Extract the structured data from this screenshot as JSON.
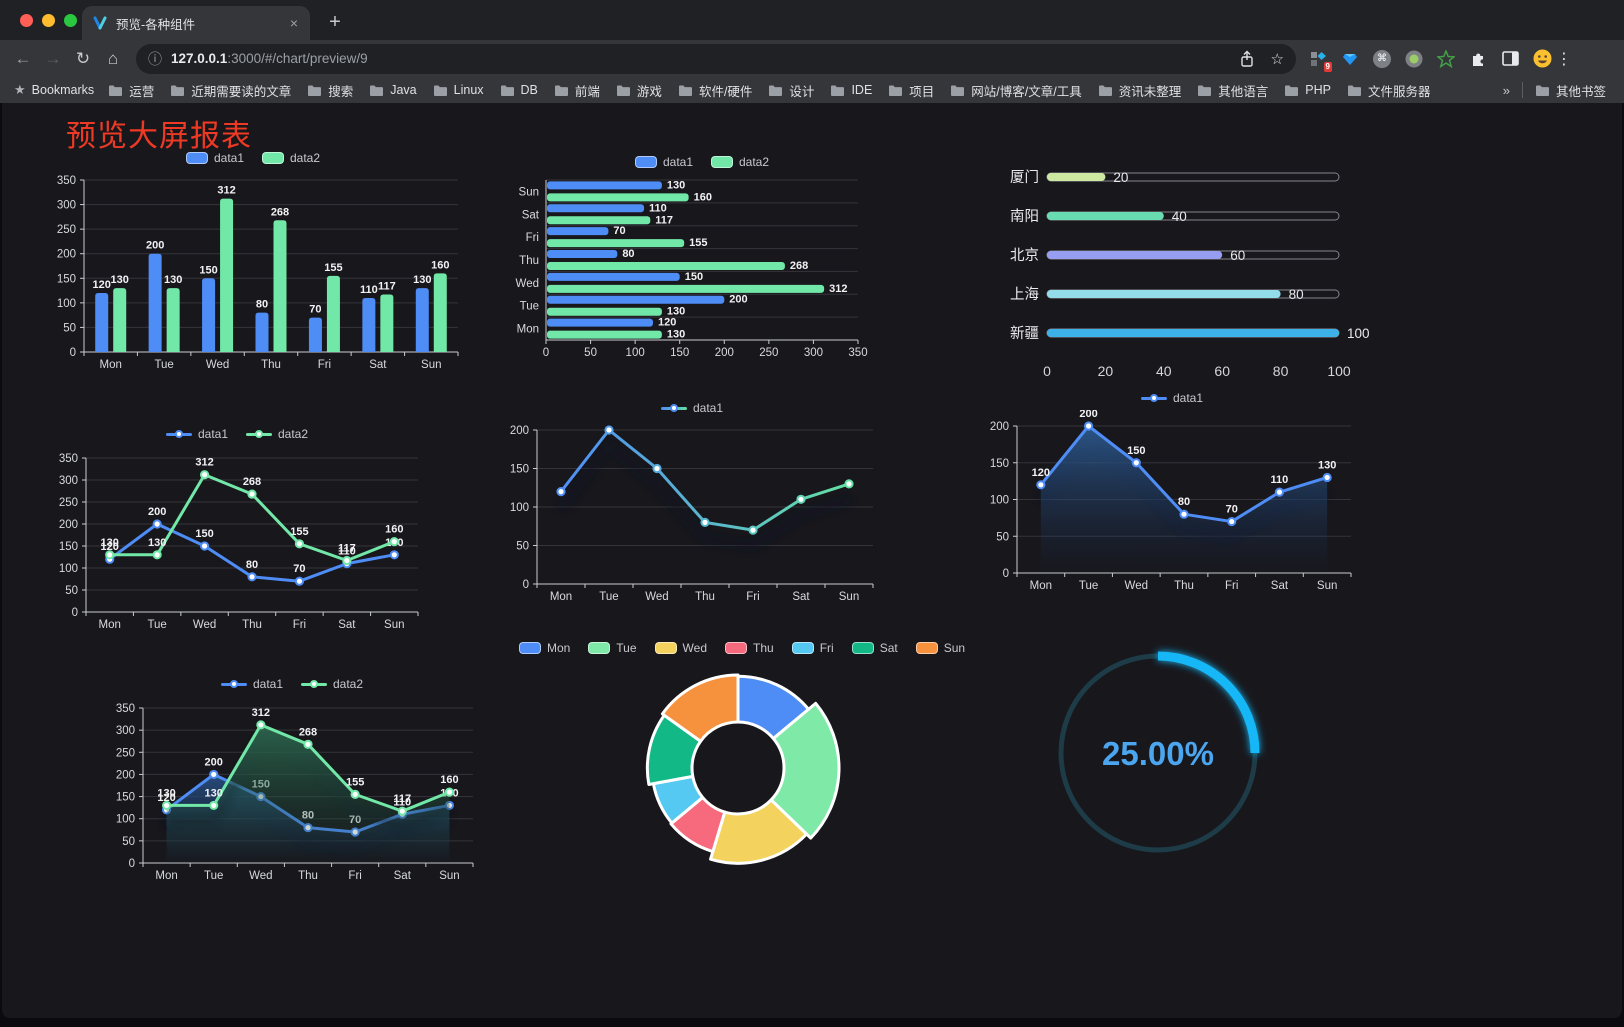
{
  "browser": {
    "tab_title": "预览-各种组件",
    "close_glyph": "×",
    "newtab_glyph": "+",
    "back_glyph": "←",
    "forward_glyph": "→",
    "reload_glyph": "↻",
    "home_glyph": "⌂",
    "info_glyph": "ⓘ",
    "star_glyph": "☆",
    "url_host": "127.0.0.1",
    "url_path": ":3000/#/chart/preview/9",
    "extension_badge": "9",
    "kebab_glyph": "⋮",
    "bookmarks_star": "★",
    "bookmarks_label": "Bookmarks",
    "bookmarks": [
      "运营",
      "近期需要读的文章",
      "搜索",
      "Java",
      "Linux",
      "DB",
      "前端",
      "游戏",
      "软件/硬件",
      "设计",
      "IDE",
      "项目",
      "网站/博客/文章/工具",
      "资讯未整理",
      "其他语言",
      "PHP",
      "文件服务器"
    ],
    "overflow_chevron": "»",
    "other_bookmarks": "其他书签"
  },
  "page": {
    "title": "预览大屏报表",
    "title_color": "#ee3a24"
  },
  "colors": {
    "data1_blue": "#4f8df6",
    "data2_green": "#72e8a8",
    "axis_line": "#c9ccd1",
    "grid_line": "#34343a",
    "tick_text": "#d8dade",
    "value_label": "#f2f2f4",
    "gauge_arc": "#19b7f7",
    "gauge_track": "#1d3c48",
    "gauge_text": "#4ba5ef"
  },
  "chart_data": [
    {
      "id": "bar-grouped",
      "type": "bar",
      "legend": true,
      "categories": [
        "Mon",
        "Tue",
        "Wed",
        "Thu",
        "Fri",
        "Sat",
        "Sun"
      ],
      "series": [
        {
          "name": "data1",
          "color": "#4f8df6",
          "values": [
            120,
            200,
            150,
            80,
            70,
            110,
            130
          ]
        },
        {
          "name": "data2",
          "color": "#72e8a8",
          "values": [
            130,
            130,
            312,
            268,
            155,
            117,
            160
          ]
        }
      ],
      "ylim": [
        0,
        350
      ],
      "yticks": [
        0,
        50,
        100,
        150,
        200,
        250,
        300,
        350
      ],
      "labels": true
    },
    {
      "id": "bar-horizontal",
      "type": "hbar",
      "legend": true,
      "categories": [
        "Mon",
        "Tue",
        "Wed",
        "Thu",
        "Fri",
        "Sat",
        "Sun"
      ],
      "series": [
        {
          "name": "data1",
          "color": "#4f8df6",
          "values": [
            120,
            200,
            150,
            80,
            70,
            110,
            130
          ]
        },
        {
          "name": "data2",
          "color": "#72e8a8",
          "values": [
            130,
            130,
            312,
            268,
            155,
            117,
            160
          ]
        }
      ],
      "xlim": [
        0,
        350
      ],
      "xticks": [
        0,
        50,
        100,
        150,
        200,
        250,
        300,
        350
      ],
      "labels": true
    },
    {
      "id": "progress",
      "type": "progress",
      "max": 100,
      "items": [
        {
          "label": "厦门",
          "value": 20,
          "color": "#cde9a1"
        },
        {
          "label": "南阳",
          "value": 40,
          "color": "#68ddb2"
        },
        {
          "label": "北京",
          "value": 60,
          "color": "#979df1"
        },
        {
          "label": "上海",
          "value": 80,
          "color": "#93dcea"
        },
        {
          "label": "新疆",
          "value": 100,
          "color": "#3db2e8"
        }
      ],
      "xticks": [
        0,
        20,
        40,
        60,
        80,
        100
      ]
    },
    {
      "id": "line-two",
      "type": "line",
      "legend": true,
      "categories": [
        "Mon",
        "Tue",
        "Wed",
        "Thu",
        "Fri",
        "Sat",
        "Sun"
      ],
      "series": [
        {
          "name": "data1",
          "color": "#4f8df6",
          "values": [
            120,
            200,
            150,
            80,
            70,
            110,
            130
          ]
        },
        {
          "name": "data2",
          "color": "#72e8a8",
          "values": [
            130,
            130,
            312,
            268,
            155,
            117,
            160
          ]
        }
      ],
      "ylim": [
        0,
        350
      ],
      "yticks": [
        0,
        50,
        100,
        150,
        200,
        250,
        300,
        350
      ],
      "labels": true
    },
    {
      "id": "line-gradient",
      "type": "line",
      "legend": true,
      "shadow": true,
      "categories": [
        "Mon",
        "Tue",
        "Wed",
        "Thu",
        "Fri",
        "Sat",
        "Sun"
      ],
      "series": [
        {
          "name": "data1",
          "color": "#4f8df6",
          "gradient": [
            "#4f8df6",
            "#63e0a3"
          ],
          "values": [
            120,
            200,
            150,
            80,
            70,
            110,
            130
          ]
        }
      ],
      "ylim": [
        0,
        200
      ],
      "yticks": [
        0,
        50,
        100,
        150,
        200
      ],
      "labels": false
    },
    {
      "id": "area-blue",
      "type": "line",
      "legend": true,
      "shadow": true,
      "categories": [
        "Mon",
        "Tue",
        "Wed",
        "Thu",
        "Fri",
        "Sat",
        "Sun"
      ],
      "series": [
        {
          "name": "data1",
          "color": "#4f8df6",
          "area": [
            "rgba(47,96,153,0.85)",
            "rgba(25,50,90,0.02)"
          ],
          "values": [
            120,
            200,
            150,
            80,
            70,
            110,
            130
          ]
        }
      ],
      "ylim": [
        0,
        200
      ],
      "yticks": [
        0,
        50,
        100,
        150,
        200
      ],
      "labels": true
    },
    {
      "id": "area-two",
      "type": "line",
      "legend": true,
      "shadow": true,
      "categories": [
        "Mon",
        "Tue",
        "Wed",
        "Thu",
        "Fri",
        "Sat",
        "Sun"
      ],
      "series": [
        {
          "name": "data1",
          "color": "#4f8df6",
          "area": [
            "rgba(44,90,150,0.8)",
            "rgba(25,50,90,0.03)"
          ],
          "values": [
            120,
            200,
            150,
            80,
            70,
            110,
            130
          ]
        },
        {
          "name": "data2",
          "color": "#72e8a8",
          "area": [
            "rgba(47,112,85,0.85)",
            "rgba(25,70,50,0.03)"
          ],
          "values": [
            130,
            130,
            312,
            268,
            155,
            117,
            160
          ]
        }
      ],
      "ylim": [
        0,
        350
      ],
      "yticks": [
        0,
        50,
        100,
        150,
        200,
        250,
        300,
        350
      ],
      "labels": true
    },
    {
      "id": "donut",
      "type": "pie",
      "legend": true,
      "items": [
        {
          "label": "Mon",
          "value": 120,
          "color": "#4f8df6"
        },
        {
          "label": "Tue",
          "value": 200,
          "color": "#7fe9a7"
        },
        {
          "label": "Wed",
          "value": 150,
          "color": "#f3d25e"
        },
        {
          "label": "Thu",
          "value": 80,
          "color": "#f7697c"
        },
        {
          "label": "Fri",
          "value": 70,
          "color": "#55c9f2"
        },
        {
          "label": "Sat",
          "value": 110,
          "color": "#12b886"
        },
        {
          "label": "Sun",
          "value": 130,
          "color": "#f6913e"
        }
      ]
    },
    {
      "id": "gauge",
      "type": "gauge",
      "percent": 25,
      "display": "25.00%",
      "arc_color": "#19b7f7",
      "track_color": "#1d3c48",
      "text_color": "#4ba5ef"
    }
  ]
}
